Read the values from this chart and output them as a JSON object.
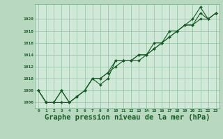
{
  "background_color": "#b8d8c0",
  "plot_bg_color": "#d0e8d8",
  "grid_color": "#90c0a0",
  "line_color": "#1a5c28",
  "marker_color": "#1a5c28",
  "xlabel": "Graphe pression niveau de la mer (hPa)",
  "xlabel_fontsize": 7.5,
  "ylim": [
    1005.0,
    1022.5
  ],
  "xlim": [
    -0.5,
    23.5
  ],
  "yticks": [
    1006,
    1008,
    1010,
    1012,
    1014,
    1016,
    1018,
    1020
  ],
  "xticks": [
    0,
    1,
    2,
    3,
    4,
    5,
    6,
    7,
    8,
    9,
    10,
    11,
    12,
    13,
    14,
    15,
    16,
    17,
    18,
    19,
    20,
    21,
    22,
    23
  ],
  "series": [
    [
      1008,
      1006,
      1006,
      1008,
      1006,
      1007,
      1008,
      1010,
      1009,
      1010,
      1013,
      1013,
      1013,
      1014,
      1014,
      1016,
      1016,
      1018,
      1018,
      1019,
      1020,
      1022,
      1020,
      1021
    ],
    [
      1008,
      1006,
      1006,
      1008,
      1006,
      1007,
      1008,
      1010,
      1010,
      1011,
      1013,
      1013,
      1013,
      1014,
      1014,
      1015,
      1016,
      1017,
      1018,
      1019,
      1019,
      1021,
      1020,
      1021
    ],
    [
      1008,
      1006,
      1006,
      1006,
      1006,
      1007,
      1008,
      1010,
      1010,
      1011,
      1012,
      1013,
      1013,
      1013,
      1014,
      1015,
      1016,
      1017,
      1018,
      1019,
      1019,
      1020,
      1020,
      1021
    ]
  ]
}
